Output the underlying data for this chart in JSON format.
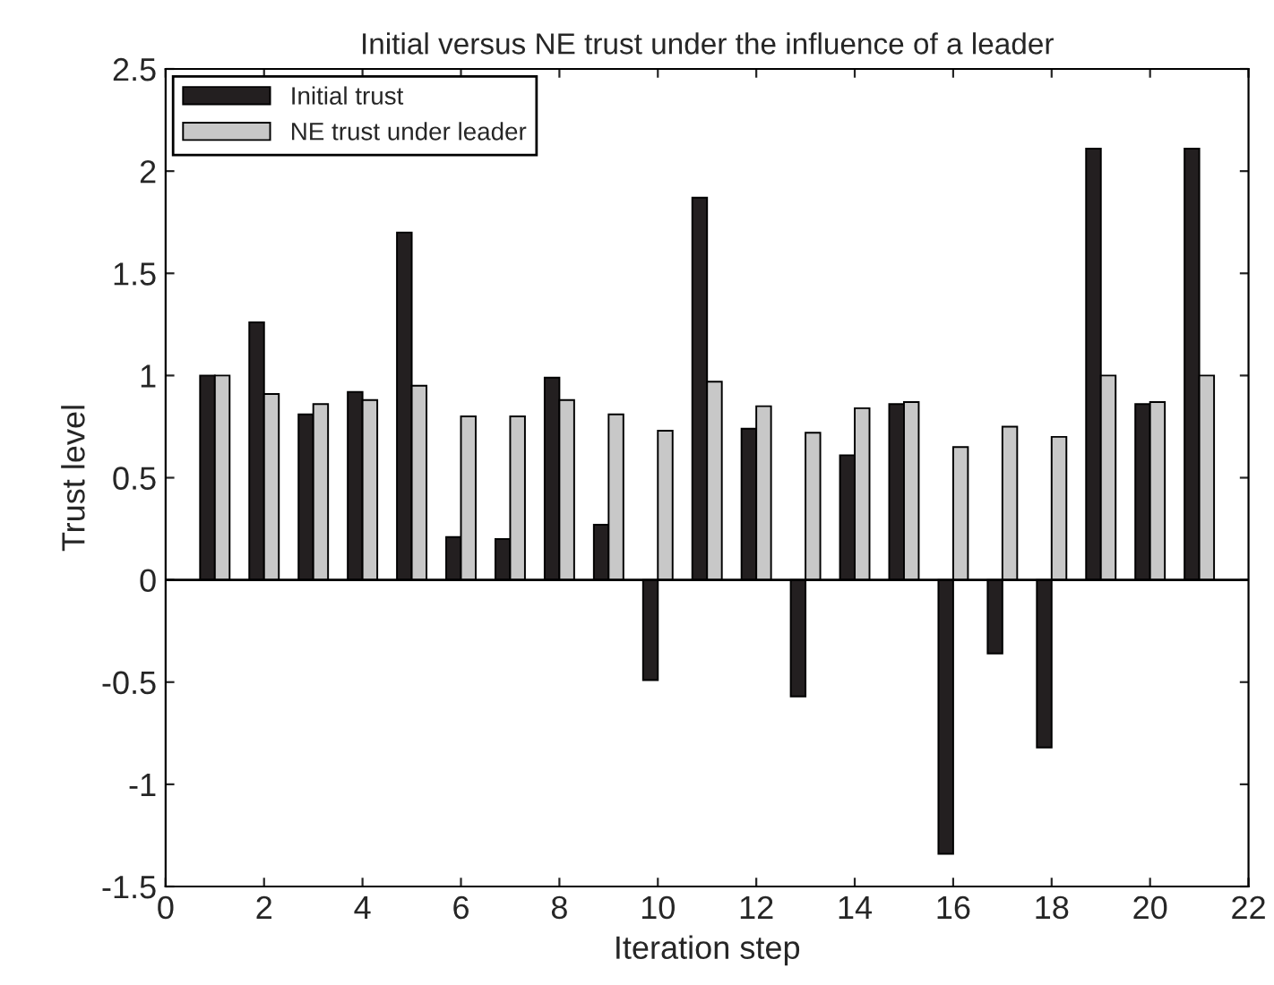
{
  "chart_data": {
    "type": "bar",
    "title": "Initial versus NE trust under the influence of a leader",
    "xlabel": "Iteration step",
    "ylabel": "Trust level",
    "x": [
      1,
      2,
      3,
      4,
      5,
      6,
      7,
      8,
      9,
      10,
      11,
      12,
      13,
      14,
      15,
      16,
      17,
      18,
      19,
      20,
      21
    ],
    "series": [
      {
        "name": "Initial trust",
        "color": "#231f20",
        "values": [
          1.0,
          1.26,
          0.81,
          0.92,
          1.7,
          0.21,
          0.2,
          0.99,
          0.27,
          -0.49,
          1.87,
          0.74,
          -0.57,
          0.61,
          0.86,
          -1.34,
          -0.36,
          -0.82,
          2.11,
          0.86,
          2.11
        ]
      },
      {
        "name": "NE trust under leader",
        "color": "#c8c8c8",
        "values": [
          1.0,
          0.91,
          0.86,
          0.88,
          0.95,
          0.8,
          0.8,
          0.88,
          0.81,
          0.73,
          0.97,
          0.85,
          0.72,
          0.84,
          0.87,
          0.65,
          0.75,
          0.7,
          1.0,
          0.87,
          1.0
        ]
      }
    ],
    "xlim": [
      0,
      22
    ],
    "xticks": [
      0,
      2,
      4,
      6,
      8,
      10,
      12,
      14,
      16,
      18,
      20,
      22
    ],
    "ylim": [
      -1.5,
      2.5
    ],
    "yticks": [
      -1.5,
      -1,
      -0.5,
      0,
      0.5,
      1,
      1.5,
      2,
      2.5
    ],
    "ref_lines": [
      {
        "axis": "y",
        "value": 0,
        "color": "#000000"
      }
    ],
    "grid": false,
    "legend": "top left"
  }
}
